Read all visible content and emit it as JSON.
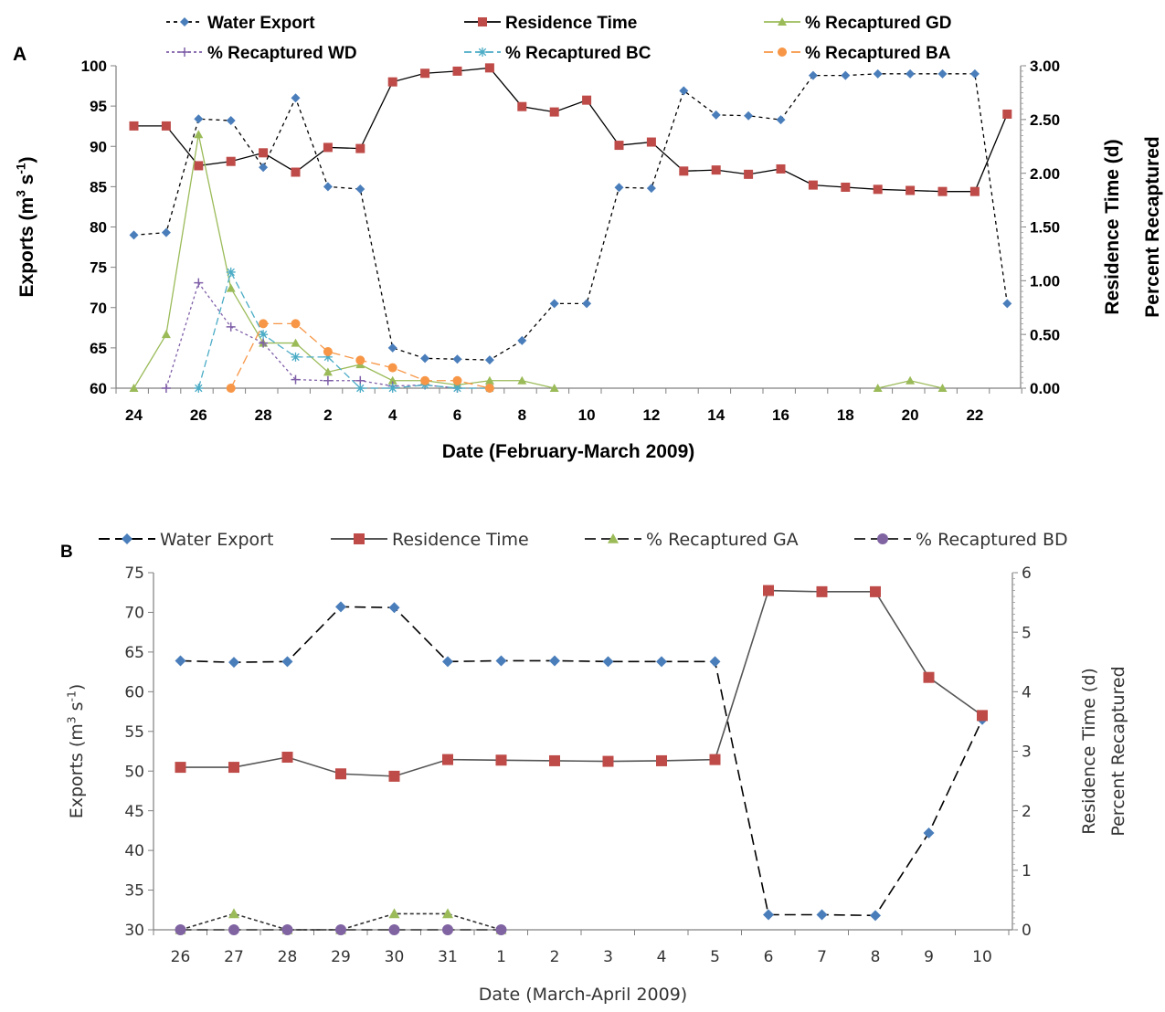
{
  "chart_data": [
    {
      "panel_label": "A",
      "type": "line",
      "xlabel": "Date (February-March 2009)",
      "ylabel": "Exports (m³ s⁻¹)",
      "ylabel_base": "Exports (m",
      "ylabel_sup1": "3",
      "ylabel_mid": " s",
      "ylabel_sup2": "-1",
      "ylabel_end": ")",
      "y2label_line1": "Residence Time (d)",
      "y2label_line2": "Percent Recaptured",
      "ylim": [
        60,
        100
      ],
      "y2lim": [
        0,
        3
      ],
      "x_tick_labels": [
        "24",
        "26",
        "28",
        "2",
        "4",
        "6",
        "8",
        "10",
        "12",
        "14",
        "16",
        "18",
        "20",
        "22"
      ],
      "y_ticks": [
        "60",
        "65",
        "70",
        "75",
        "80",
        "85",
        "90",
        "95",
        "100"
      ],
      "y2_ticks": [
        "0.00",
        "0.50",
        "1.00",
        "1.50",
        "2.00",
        "2.50",
        "3.00"
      ],
      "days": [
        "24",
        "25",
        "26",
        "27",
        "28",
        "1",
        "2",
        "3",
        "4",
        "5",
        "6",
        "7",
        "8",
        "9",
        "10",
        "11",
        "12",
        "13",
        "14",
        "15",
        "16",
        "17",
        "18",
        "19",
        "20",
        "21",
        "22",
        "23"
      ],
      "series": [
        {
          "name": "Water Export",
          "axis": "left",
          "color": "#4a7ebb",
          "marker": "diamond",
          "dash": "4,4",
          "line": "#000000",
          "x": [
            0,
            1,
            2,
            3,
            4,
            5,
            6,
            7,
            8,
            9,
            10,
            11,
            12,
            13,
            14,
            15,
            16,
            17,
            18,
            19,
            20,
            21,
            22,
            23,
            24,
            25,
            26,
            27
          ],
          "values": [
            79,
            79.3,
            93.4,
            93.2,
            87.4,
            96,
            85,
            84.7,
            65,
            63.7,
            63.6,
            63.5,
            65.9,
            70.5,
            70.5,
            84.9,
            84.8,
            96.9,
            93.9,
            93.8,
            93.3,
            98.8,
            98.8,
            99,
            99,
            99,
            99,
            70.5
          ]
        },
        {
          "name": "Residence Time",
          "axis": "right",
          "color": "#be4b48",
          "marker": "square",
          "dash": "",
          "line": "#000000",
          "x": [
            0,
            1,
            2,
            3,
            4,
            5,
            6,
            7,
            8,
            9,
            10,
            11,
            12,
            13,
            14,
            15,
            16,
            17,
            18,
            19,
            20,
            21,
            22,
            23,
            24,
            25,
            26,
            27
          ],
          "values": [
            2.44,
            2.44,
            2.07,
            2.11,
            2.19,
            2.01,
            2.24,
            2.23,
            2.85,
            2.93,
            2.95,
            2.98,
            2.62,
            2.57,
            2.68,
            2.26,
            2.29,
            2.02,
            2.03,
            1.99,
            2.04,
            1.89,
            1.87,
            1.85,
            1.84,
            1.83,
            1.83,
            2.55
          ]
        },
        {
          "name": "% Recaptured GD",
          "axis": "right",
          "color": "#9bbb59",
          "marker": "triangle",
          "dash": "",
          "line": "#9bbb59",
          "x": [
            0,
            1,
            2,
            3,
            4,
            5,
            6,
            7,
            8,
            9,
            10,
            11,
            12,
            13
          ],
          "values": [
            0,
            0.5,
            2.36,
            0.93,
            0.42,
            0.42,
            0.15,
            0.22,
            0.07,
            0.07,
            0.03,
            0.07,
            0.07,
            0
          ]
        },
        {
          "name": "% Recaptured GD",
          "axis": "right",
          "color": "#9bbb59",
          "marker": "triangle",
          "dash": "",
          "line": "#9bbb59",
          "x": [
            23,
            24,
            25
          ],
          "values": [
            0,
            0.07,
            0
          ]
        },
        {
          "name": "% Recaptured WD",
          "axis": "right",
          "color": "#7f5fa8",
          "marker": "plus",
          "dash": "3,3",
          "line": "#7f5fa8",
          "x": [
            1,
            2,
            3,
            4,
            5,
            6,
            7,
            8,
            9,
            10
          ],
          "values": [
            0,
            0.98,
            0.57,
            0.42,
            0.08,
            0.07,
            0.07,
            0.02,
            0.03,
            0
          ]
        },
        {
          "name": "% Recaptured BC",
          "axis": "right",
          "color": "#4bacc6",
          "marker": "star",
          "dash": "8,4",
          "line": "#4bacc6",
          "x": [
            2,
            3,
            4,
            5,
            6,
            7,
            8,
            9,
            10,
            11
          ],
          "values": [
            0,
            1.08,
            0.5,
            0.29,
            0.29,
            0,
            0,
            0.03,
            0,
            0
          ]
        },
        {
          "name": "% Recaptured BA",
          "axis": "right",
          "color": "#f79646",
          "marker": "circle",
          "dash": "10,5",
          "line": "#f79646",
          "x": [
            3,
            4,
            5,
            6,
            7,
            8,
            9,
            10,
            11
          ],
          "values": [
            0,
            0.6,
            0.6,
            0.34,
            0.26,
            0.19,
            0.07,
            0.07,
            0
          ]
        }
      ]
    },
    {
      "panel_label": "B",
      "type": "line",
      "xlabel": "Date (March-April 2009)",
      "ylabel_base": "Exports (m",
      "ylabel_sup1": "3",
      "ylabel_mid": " s",
      "ylabel_sup2": "-1",
      "ylabel_end": ")",
      "y2label_line1": "Residence Time (d)",
      "y2label_line2": "Percent Recaptured",
      "ylim": [
        30,
        75
      ],
      "y2lim": [
        0,
        6
      ],
      "x_tick_labels": [
        "26",
        "27",
        "28",
        "29",
        "30",
        "31",
        "1",
        "2",
        "3",
        "4",
        "5",
        "6",
        "7",
        "8",
        "9",
        "10"
      ],
      "y_ticks": [
        "30",
        "35",
        "40",
        "45",
        "50",
        "55",
        "60",
        "65",
        "70",
        "75"
      ],
      "y2_ticks": [
        "0",
        "1",
        "2",
        "3",
        "4",
        "5",
        "6"
      ],
      "series": [
        {
          "name": "Water Export",
          "axis": "left",
          "color": "#4a7ebb",
          "marker": "diamond",
          "dash": "12,6",
          "line": "#000000",
          "x": [
            0,
            1,
            2,
            3,
            4,
            5,
            6,
            7,
            8,
            9,
            10,
            11,
            12,
            13,
            14,
            15
          ],
          "values": [
            63.9,
            63.7,
            63.8,
            70.7,
            70.6,
            63.8,
            63.9,
            63.9,
            63.8,
            63.8,
            63.8,
            31.9,
            31.9,
            31.8,
            42.2,
            56.5
          ]
        },
        {
          "name": "Residence Time",
          "axis": "right",
          "color": "#be4b48",
          "marker": "square",
          "dash": "",
          "line": "#555555",
          "x": [
            0,
            1,
            2,
            3,
            4,
            5,
            6,
            7,
            8,
            9,
            10,
            11,
            12,
            13,
            14,
            15
          ],
          "values": [
            2.73,
            2.73,
            2.9,
            2.62,
            2.58,
            2.86,
            2.85,
            2.84,
            2.83,
            2.84,
            2.86,
            5.7,
            5.68,
            5.68,
            4.24,
            3.6
          ]
        },
        {
          "name": "% Recaptured GA",
          "axis": "right",
          "color": "#9bbb59",
          "marker": "triangle",
          "dash": "4,3",
          "line": "#333333",
          "x": [
            0,
            1,
            2,
            3,
            4,
            5,
            6
          ],
          "values": [
            0,
            0.27,
            0,
            0,
            0.27,
            0.27,
            0
          ]
        },
        {
          "name": "% Recaptured BD",
          "axis": "right",
          "color": "#8064a2",
          "marker": "circle",
          "dash": "12,6",
          "line": "#333333",
          "x": [
            0,
            1,
            2,
            3,
            4,
            5,
            6
          ],
          "values": [
            0,
            0,
            0,
            0,
            0,
            0,
            0
          ]
        }
      ]
    }
  ]
}
